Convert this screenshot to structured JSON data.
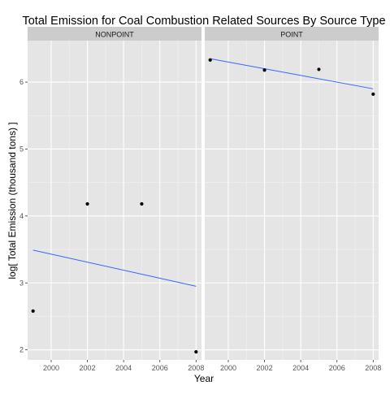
{
  "chart_data": {
    "type": "scatter",
    "title": "Total Emission for Coal Combustion Related Sources By Source Type",
    "xlabel": "Year",
    "ylabel": "log[ Total Emission (thousand tons) ]",
    "x_ticks": [
      2000,
      2002,
      2004,
      2006,
      2008
    ],
    "y_ticks": [
      2,
      3,
      4,
      5,
      6
    ],
    "xlim": [
      1998.7,
      2008.3
    ],
    "ylim": [
      1.85,
      6.62
    ],
    "grid": true,
    "legend": "none",
    "colors": {
      "panel_background": "#E5E5E5",
      "strip_background": "#CCCCCC",
      "grid_major": "#FFFFFF",
      "grid_minor": "#F2F2F2",
      "point": "#000000",
      "fit_line": "#3366FF",
      "tick_label": "#555555"
    },
    "panels": [
      {
        "strip": "NONPOINT",
        "points": [
          {
            "x": 1999,
            "y": 2.58
          },
          {
            "x": 2002,
            "y": 4.18
          },
          {
            "x": 2005,
            "y": 4.18
          },
          {
            "x": 2008,
            "y": 1.97
          }
        ],
        "fit_line": [
          {
            "x": 1999,
            "y": 3.49
          },
          {
            "x": 2008,
            "y": 2.95
          }
        ]
      },
      {
        "strip": "POINT",
        "points": [
          {
            "x": 1999,
            "y": 6.33
          },
          {
            "x": 2002,
            "y": 6.18
          },
          {
            "x": 2005,
            "y": 6.19
          },
          {
            "x": 2008,
            "y": 5.82
          }
        ],
        "fit_line": [
          {
            "x": 1999,
            "y": 6.35
          },
          {
            "x": 2008,
            "y": 5.9
          }
        ]
      }
    ]
  }
}
